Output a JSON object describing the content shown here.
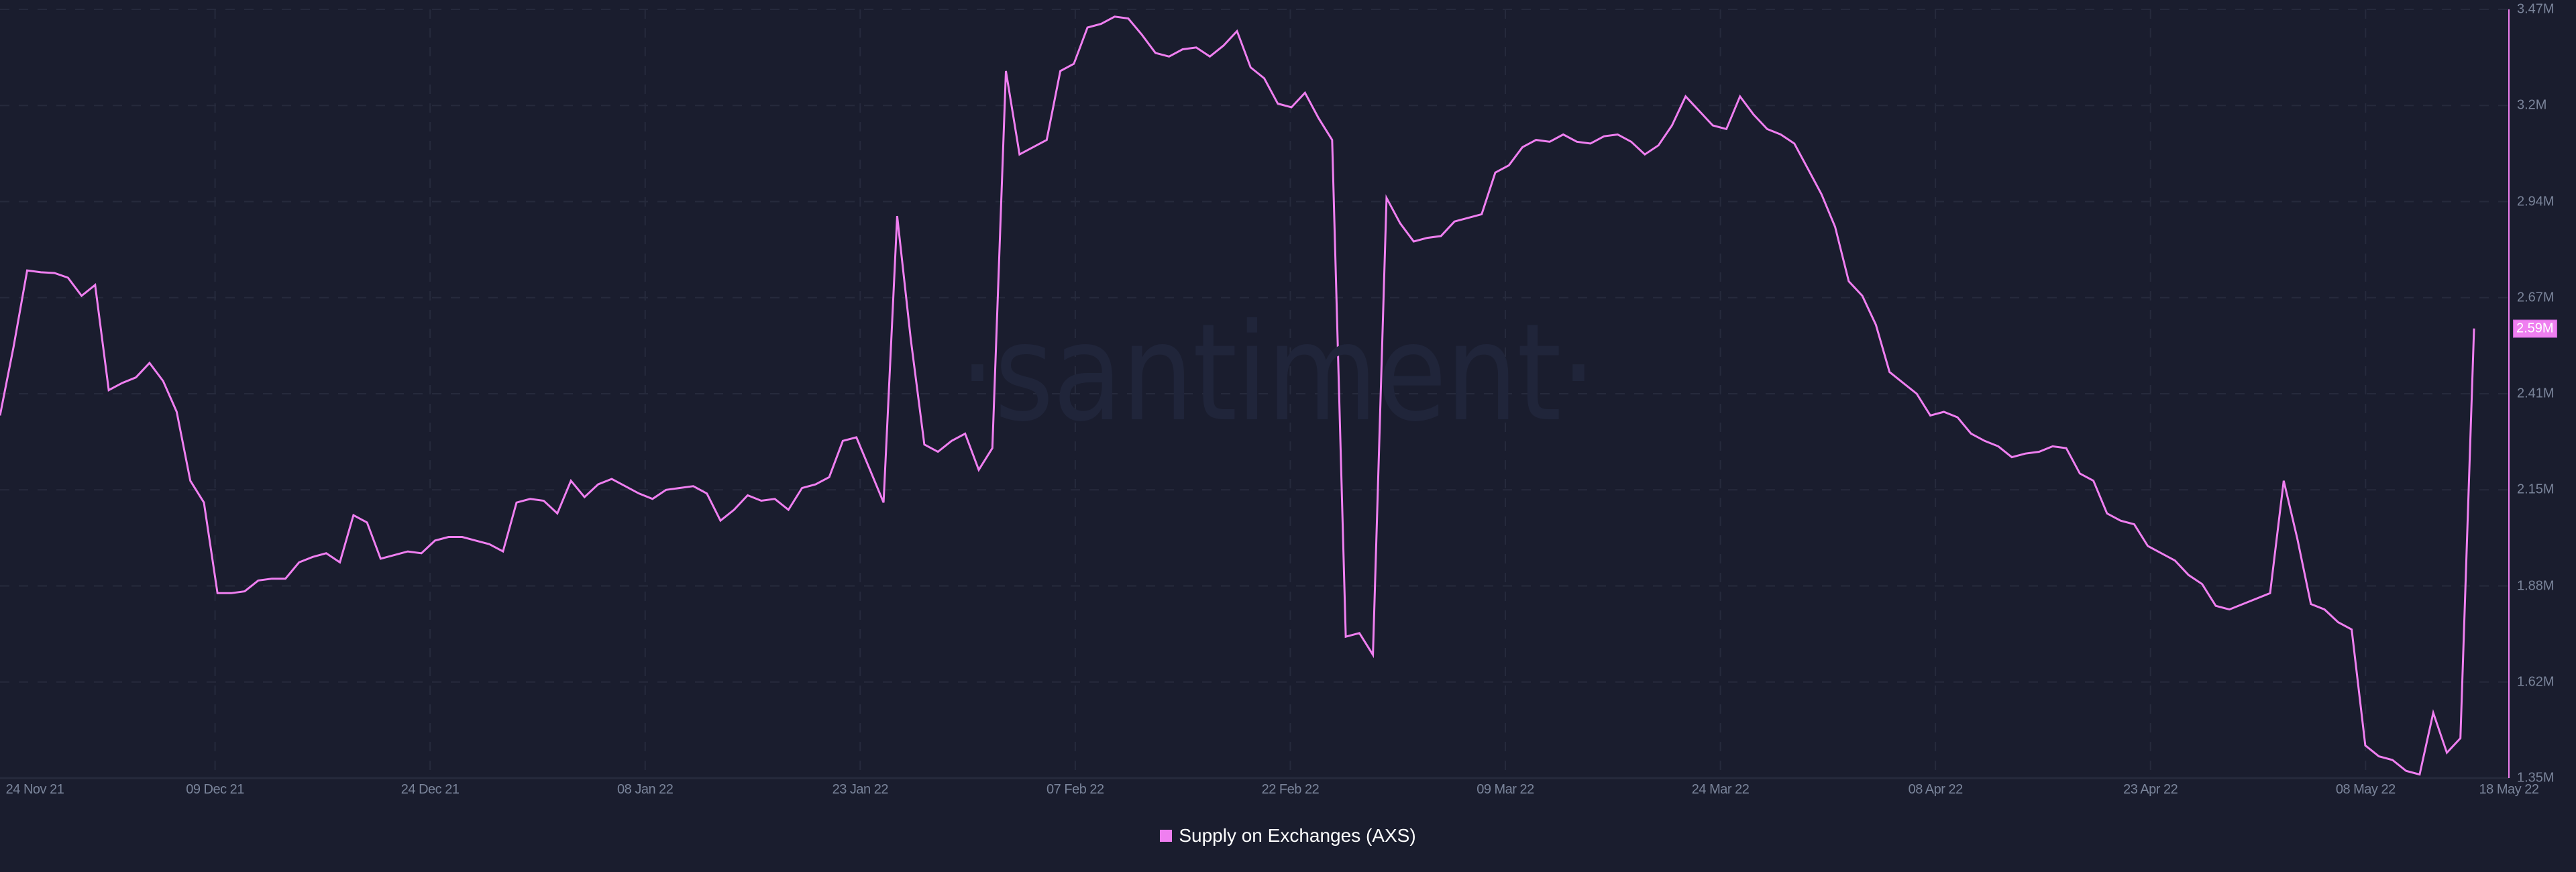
{
  "chart_data": {
    "type": "line",
    "title": "",
    "xlabel": "",
    "ylabel": "",
    "legend_position": "bottom-center",
    "grid": true,
    "ylim": [
      1.35,
      3.47
    ],
    "y_unit": "M",
    "y_ticks": [
      "3.47M",
      "3.2M",
      "2.94M",
      "2.67M",
      "2.41M",
      "2.15M",
      "1.88M",
      "1.62M",
      "1.35M"
    ],
    "x_ticks": [
      "24 Nov 21",
      "09 Dec 21",
      "24 Dec 21",
      "08 Jan 22",
      "23 Jan 22",
      "07 Feb 22",
      "22 Feb 22",
      "09 Mar 22",
      "24 Mar 22",
      "08 Apr 22",
      "23 Apr 22",
      "08 May 22",
      "18 May 22"
    ],
    "x_range": [
      "24 Nov 21",
      "18 May 22"
    ],
    "last_value_label": "2.59M",
    "series": [
      {
        "name": "Supply on Exchanges (AXS)",
        "color": "#ef7ff0",
        "values": [
          2.35,
          2.54,
          2.75,
          2.745,
          2.743,
          2.73,
          2.68,
          2.71,
          2.42,
          2.44,
          2.455,
          2.495,
          2.445,
          2.36,
          2.17,
          2.11,
          1.86,
          1.86,
          1.865,
          1.895,
          1.9,
          1.9,
          1.945,
          1.96,
          1.97,
          1.945,
          2.075,
          2.055,
          1.955,
          1.965,
          1.975,
          1.97,
          2.005,
          2.015,
          2.015,
          2.005,
          1.995,
          1.975,
          2.11,
          2.12,
          2.115,
          2.08,
          2.17,
          2.125,
          2.16,
          2.175,
          2.155,
          2.135,
          2.12,
          2.145,
          2.15,
          2.155,
          2.135,
          2.06,
          2.09,
          2.13,
          2.115,
          2.12,
          2.09,
          2.15,
          2.16,
          2.18,
          2.28,
          2.29,
          2.2,
          2.11,
          2.9,
          2.56,
          2.27,
          2.25,
          2.28,
          2.3,
          2.2,
          2.26,
          3.3,
          3.07,
          3.09,
          3.11,
          3.3,
          3.32,
          3.42,
          3.43,
          3.45,
          3.445,
          3.4,
          3.35,
          3.34,
          3.36,
          3.365,
          3.34,
          3.37,
          3.41,
          3.31,
          3.28,
          3.21,
          3.2,
          3.24,
          3.17,
          3.11,
          1.74,
          1.75,
          1.69,
          2.95,
          2.88,
          2.83,
          2.84,
          2.845,
          2.885,
          2.895,
          2.905,
          3.02,
          3.04,
          3.09,
          3.11,
          3.105,
          3.125,
          3.105,
          3.1,
          3.12,
          3.125,
          3.105,
          3.07,
          3.095,
          3.15,
          3.23,
          3.19,
          3.15,
          3.14,
          3.23,
          3.18,
          3.14,
          3.125,
          3.1,
          3.03,
          2.96,
          2.87,
          2.72,
          2.68,
          2.6,
          2.47,
          2.44,
          2.41,
          2.35,
          2.36,
          2.345,
          2.3,
          2.28,
          2.265,
          2.235,
          2.245,
          2.25,
          2.265,
          2.26,
          2.19,
          2.17,
          2.08,
          2.06,
          2.05,
          1.99,
          1.97,
          1.95,
          1.91,
          1.885,
          1.825,
          1.815,
          1.83,
          1.845,
          1.86,
          2.17,
          2.01,
          1.83,
          1.815,
          1.78,
          1.76,
          1.44,
          1.41,
          1.4,
          1.37,
          1.36,
          1.53,
          1.42,
          1.46,
          2.59
        ]
      }
    ]
  },
  "watermark": "·santiment·",
  "legend": {
    "label": "Supply on Exchanges (AXS)",
    "color": "#ef7ff0"
  },
  "colors": {
    "background": "#1a1d2e",
    "grid": "#262a3c",
    "axis_text": "#7a849a",
    "line": "#ef7ff0"
  }
}
